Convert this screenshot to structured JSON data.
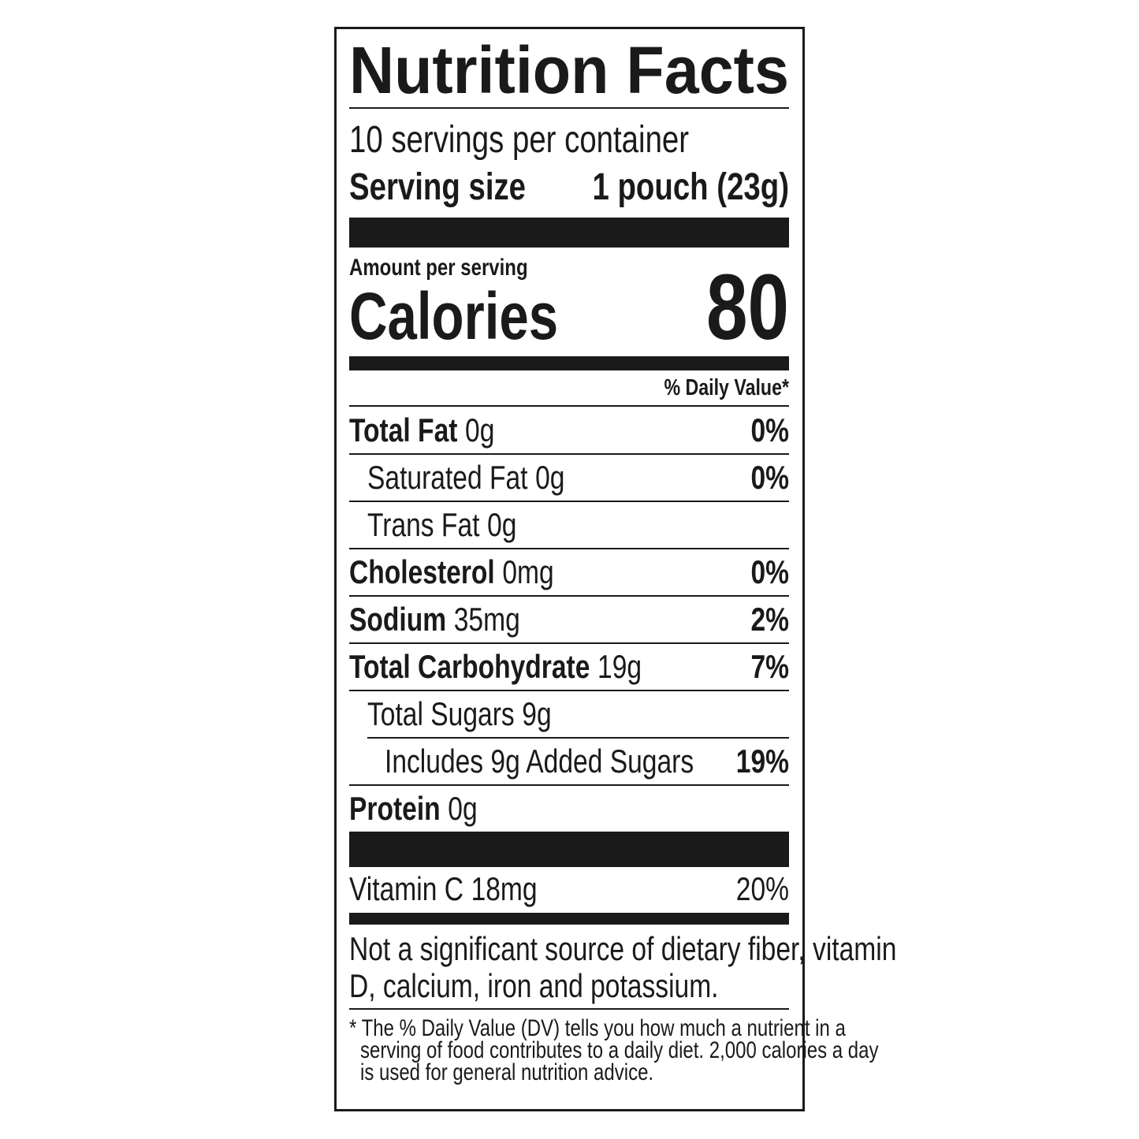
{
  "title": "Nutrition Facts",
  "servings_per_container": "10 servings per container",
  "serving_size": {
    "label": "Serving size",
    "value": "1 pouch (23g)"
  },
  "amount_per_serving": "Amount per serving",
  "calories": {
    "label": "Calories",
    "value": "80"
  },
  "daily_value_header": "% Daily Value*",
  "nutrients": [
    {
      "name": "Total Fat",
      "amount": "0g",
      "dv": "0%",
      "level": 0,
      "bold": true
    },
    {
      "name": "Saturated Fat",
      "amount": "0g",
      "dv": "0%",
      "level": 1,
      "bold": false
    },
    {
      "name": "Trans Fat",
      "amount": "0g",
      "level": 1,
      "bold": false
    },
    {
      "name": "Cholesterol",
      "amount": "0mg",
      "dv": "0%",
      "level": 0,
      "bold": true
    },
    {
      "name": "Sodium",
      "amount": "35mg",
      "dv": "2%",
      "level": 0,
      "bold": true
    },
    {
      "name": "Total Carbohydrate",
      "amount": "19g",
      "dv": "7%",
      "level": 0,
      "bold": true
    },
    {
      "name": "Total Sugars",
      "amount": "9g",
      "level": 1,
      "bold": false
    },
    {
      "name": "Includes 9g Added Sugars",
      "dv": "19%",
      "level": 2,
      "bold": false
    },
    {
      "name": "Protein",
      "amount": "0g",
      "level": 0,
      "bold": true
    }
  ],
  "vitamins": [
    {
      "name": "Vitamin C",
      "amount": "18mg",
      "dv": "20%"
    }
  ],
  "note_lines": [
    "Not a significant source of dietary fiber, vitamin",
    "D, calcium, iron and potassium."
  ],
  "footnote_lines": [
    "* The % Daily Value (DV) tells you how much a nutrient in a",
    "serving of food contributes to a daily diet. 2,000 calories a day",
    "is used for general nutrition advice."
  ]
}
